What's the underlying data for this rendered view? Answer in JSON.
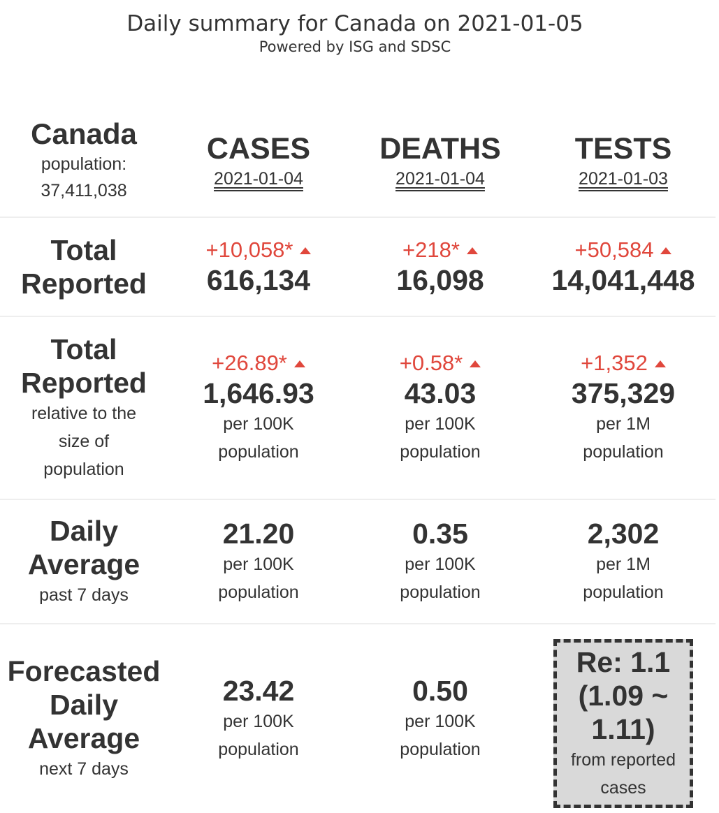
{
  "header": {
    "title": "Daily summary for Canada on 2021-01-05",
    "subtitle": "Powered by ISG and SDSC"
  },
  "region": {
    "name": "Canada",
    "population_label": "population:",
    "population_value": "37,411,038"
  },
  "columns": [
    {
      "title": "CASES",
      "date": "2021-01-04"
    },
    {
      "title": "DEATHS",
      "date": "2021-01-04"
    },
    {
      "title": "TESTS",
      "date": "2021-01-03"
    }
  ],
  "rows": {
    "total": {
      "title_line1": "Total",
      "title_line2": "Reported",
      "cells": [
        {
          "delta": "+10,058*",
          "value": "616,134"
        },
        {
          "delta": "+218*",
          "value": "16,098"
        },
        {
          "delta": "+50,584",
          "value": "14,041,448"
        }
      ]
    },
    "relative": {
      "title_line1": "Total",
      "title_line2": "Reported",
      "sub_line1": "relative to the",
      "sub_line2": "size of",
      "sub_line3": "population",
      "cells": [
        {
          "delta": "+26.89*",
          "value": "1,646.93",
          "unit_line1": "per 100K",
          "unit_line2": "population"
        },
        {
          "delta": "+0.58*",
          "value": "43.03",
          "unit_line1": "per 100K",
          "unit_line2": "population"
        },
        {
          "delta": "+1,352",
          "value": "375,329",
          "unit_line1": "per 1M",
          "unit_line2": "population"
        }
      ]
    },
    "daily_avg": {
      "title_line1": "Daily",
      "title_line2": "Average",
      "sub": "past 7 days",
      "cells": [
        {
          "value": "21.20",
          "unit_line1": "per 100K",
          "unit_line2": "population"
        },
        {
          "value": "0.35",
          "unit_line1": "per 100K",
          "unit_line2": "population"
        },
        {
          "value": "2,302",
          "unit_line1": "per 1M",
          "unit_line2": "population"
        }
      ]
    },
    "forecast": {
      "title_line1": "Forecasted",
      "title_line2": "Daily",
      "title_line3": "Average",
      "sub": "next 7 days",
      "cells": [
        {
          "value": "23.42",
          "unit_line1": "per 100K",
          "unit_line2": "population"
        },
        {
          "value": "0.50",
          "unit_line1": "per 100K",
          "unit_line2": "population"
        }
      ],
      "re": {
        "line1": "Re: 1.1",
        "line2": "(1.09 ~",
        "line3": "1.11)",
        "note_line1": "from reported",
        "note_line2": "cases"
      }
    }
  },
  "colors": {
    "text": "#333333",
    "increase": "#e0473c",
    "re_box_bg": "#d9d9d9",
    "divider": "#eeeeee"
  },
  "icons": {
    "increase": "triangle-up-icon"
  }
}
